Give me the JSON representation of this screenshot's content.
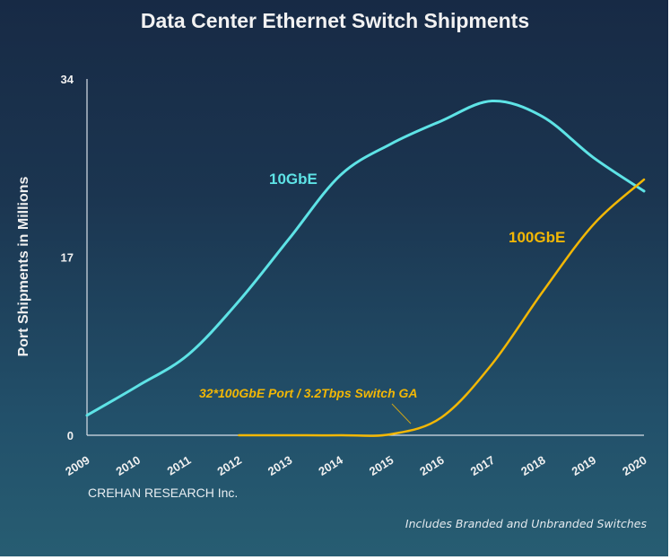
{
  "chart_data": {
    "type": "line",
    "title": "Data Center Ethernet Switch Shipments",
    "ylabel": "Port Shipments in Millions",
    "xlabel": "",
    "ylim": [
      0,
      34
    ],
    "yticks": [
      "0",
      "17",
      "34"
    ],
    "x": [
      "2009",
      "2010",
      "2011",
      "2012",
      "2013",
      "2014",
      "2015",
      "2016",
      "2017",
      "2018",
      "2019",
      "2020"
    ],
    "series": [
      {
        "name": "10GbE",
        "color": "#5ee3e6",
        "values": [
          1.9,
          4.7,
          7.7,
          12.8,
          18.8,
          24.8,
          27.8,
          30.0,
          31.9,
          30.4,
          26.5,
          23.3
        ]
      },
      {
        "name": "100GbE",
        "color": "#f2b705",
        "values": [
          null,
          null,
          null,
          0,
          0,
          0,
          0.1,
          1.7,
          6.8,
          13.7,
          20.1,
          24.4
        ]
      }
    ],
    "annotation": "32*100GbE Port / 3.2Tbps Switch GA",
    "grid": false,
    "legend": "inline labels"
  },
  "credit": "CREHAN RESEARCH Inc.",
  "note": "Includes Branded and Unbranded Switches"
}
